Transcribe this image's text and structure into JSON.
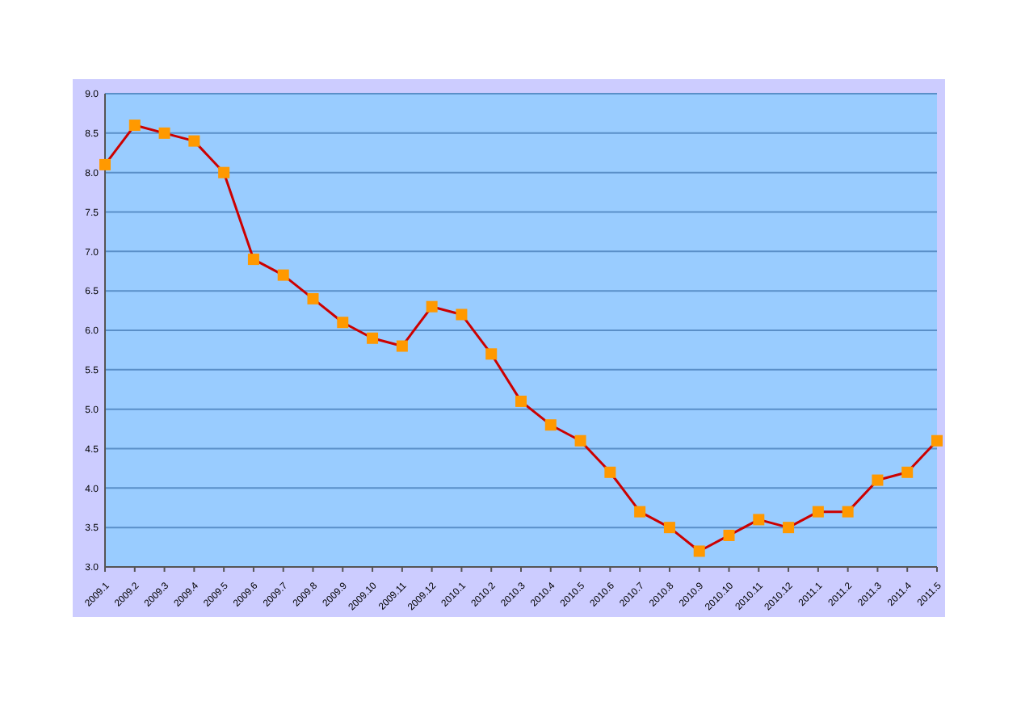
{
  "chart_data": {
    "type": "line",
    "categories": [
      "2009.1",
      "2009.2",
      "2009.3",
      "2009.4",
      "2009.5",
      "2009.6",
      "2009.7",
      "2009.8",
      "2009.9",
      "2009.10",
      "2009.11",
      "2009.12",
      "2010.1",
      "2010.2",
      "2010.3",
      "2010.4",
      "2010.5",
      "2010.6",
      "2010.7",
      "2010.8",
      "2010.9",
      "2010.10",
      "2010.11",
      "2010.12",
      "2011.1",
      "2011.2",
      "2011.3",
      "2011.4",
      "2011.5"
    ],
    "series": [
      {
        "color": "#cc0000",
        "values": [
          8.1,
          8.6,
          8.5,
          8.4,
          8.0,
          6.9,
          6.7,
          6.4,
          6.1,
          5.9,
          5.8,
          6.3,
          6.2,
          5.7,
          5.1,
          4.8,
          4.6,
          4.2,
          3.7,
          3.5,
          3.2,
          3.4,
          3.6,
          3.5,
          3.7,
          3.7,
          4.1,
          4.2,
          4.6
        ]
      }
    ],
    "ylim": [
      3,
      9
    ],
    "yticks": [
      {
        "value": 3,
        "label": "3.0"
      },
      {
        "value": 3.5,
        "label": "3.5"
      },
      {
        "value": 4,
        "label": "4.0"
      },
      {
        "value": 4.5,
        "label": "4.5"
      },
      {
        "value": 5,
        "label": "5.0"
      },
      {
        "value": 5.5,
        "label": "5.5"
      },
      {
        "value": 6,
        "label": "6.0"
      },
      {
        "value": 6.5,
        "label": "6.5"
      },
      {
        "value": 7,
        "label": "7.0"
      },
      {
        "value": 7.5,
        "label": "7.5"
      },
      {
        "value": 8,
        "label": "8.0"
      },
      {
        "value": 8.5,
        "label": "8.5"
      },
      {
        "value": 9,
        "label": "9.0"
      }
    ],
    "grid": "y",
    "marker": "square",
    "line_style": "solid",
    "legend": false
  }
}
